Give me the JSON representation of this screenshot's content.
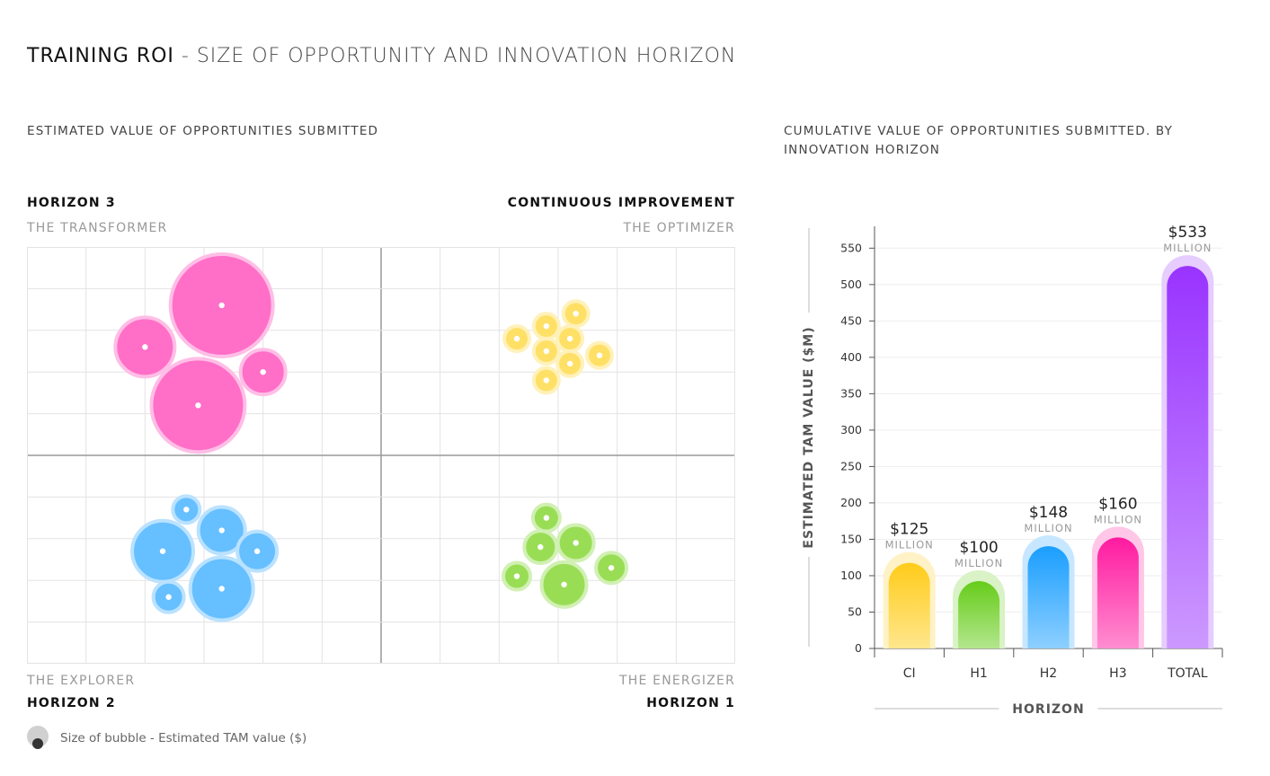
{
  "header": {
    "title_bold": "TRAINING ROI",
    "title_rest": " - SIZE OF OPPORTUNITY AND INNOVATION HORIZON"
  },
  "left_panel": {
    "subtitle": "ESTIMATED VALUE OF OPPORTUNITIES SUBMITTED",
    "quadrants": {
      "top_left": {
        "heading": "HORIZON 3",
        "label": "THE TRANSFORMER"
      },
      "top_right": {
        "heading": "CONTINUOUS IMPROVEMENT",
        "label": "THE OPTIMIZER"
      },
      "bottom_left": {
        "heading": "HORIZON 2",
        "label": "THE EXPLORER"
      },
      "bottom_right": {
        "heading": "HORIZON 1",
        "label": "THE ENERGIZER"
      }
    },
    "legend": "Size of bubble - Estimated TAM value ($)"
  },
  "right_panel": {
    "subtitle_line1": "CUMULATIVE VALUE OF OPPORTUNITIES SUBMITTED. BY",
    "subtitle_line2": "INNOVATION HORIZON"
  },
  "colors": {
    "pink": "#ff6ec7",
    "yellow": "#ffe066",
    "blue": "#66bfff",
    "green": "#99dd55",
    "purple": "#a64dff"
  },
  "chart_data": [
    {
      "type": "scatter",
      "title": "ESTIMATED VALUE OF OPPORTUNITIES SUBMITTED",
      "xlim": [
        0,
        12
      ],
      "ylim": [
        0,
        10
      ],
      "grid": true,
      "size_legend": "Size of bubble - Estimated TAM value ($)",
      "series": [
        {
          "name": "THE TRANSFORMER",
          "color": "#ff6ec7",
          "points": [
            {
              "x": 3.3,
              "y": 8.6,
              "r": 57
            },
            {
              "x": 2.0,
              "y": 7.6,
              "r": 33
            },
            {
              "x": 4.0,
              "y": 7.0,
              "r": 25
            },
            {
              "x": 2.9,
              "y": 6.2,
              "r": 52
            }
          ]
        },
        {
          "name": "THE OPTIMIZER",
          "color": "#ffe066",
          "points": [
            {
              "x": 9.3,
              "y": 8.4,
              "r": 14
            },
            {
              "x": 8.8,
              "y": 8.1,
              "r": 14
            },
            {
              "x": 8.3,
              "y": 7.8,
              "r": 14
            },
            {
              "x": 9.2,
              "y": 7.8,
              "r": 14
            },
            {
              "x": 8.8,
              "y": 7.5,
              "r": 14
            },
            {
              "x": 9.7,
              "y": 7.4,
              "r": 14
            },
            {
              "x": 9.2,
              "y": 7.2,
              "r": 14
            },
            {
              "x": 8.8,
              "y": 6.8,
              "r": 14
            }
          ]
        },
        {
          "name": "THE EXPLORER",
          "color": "#66bfff",
          "points": [
            {
              "x": 2.7,
              "y": 3.7,
              "r": 15
            },
            {
              "x": 3.3,
              "y": 3.2,
              "r": 26
            },
            {
              "x": 2.3,
              "y": 2.7,
              "r": 34
            },
            {
              "x": 3.9,
              "y": 2.7,
              "r": 22
            },
            {
              "x": 3.3,
              "y": 1.8,
              "r": 35
            },
            {
              "x": 2.4,
              "y": 1.6,
              "r": 17
            }
          ]
        },
        {
          "name": "THE ENERGIZER",
          "color": "#99dd55",
          "points": [
            {
              "x": 8.8,
              "y": 3.5,
              "r": 15
            },
            {
              "x": 9.3,
              "y": 2.9,
              "r": 20
            },
            {
              "x": 8.7,
              "y": 2.8,
              "r": 18
            },
            {
              "x": 9.9,
              "y": 2.3,
              "r": 17
            },
            {
              "x": 8.3,
              "y": 2.1,
              "r": 15
            },
            {
              "x": 9.1,
              "y": 1.9,
              "r": 25
            }
          ]
        }
      ]
    },
    {
      "type": "bar",
      "title": "CUMULATIVE VALUE OF OPPORTUNITIES SUBMITTED. BY INNOVATION HORIZON",
      "xlabel": "HORIZON",
      "ylabel": "ESTIMATED TAM VALUE ($M)",
      "ylim": [
        0,
        580
      ],
      "yticks": [
        0,
        50,
        100,
        150,
        200,
        250,
        300,
        350,
        400,
        450,
        500,
        550
      ],
      "categories": [
        "CI",
        "H1",
        "H2",
        "H3",
        "TOTAL"
      ],
      "values": [
        125,
        100,
        148,
        160,
        533
      ],
      "value_labels": [
        "$125",
        "$100",
        "$148",
        "$160",
        "$533"
      ],
      "unit_label": "MILLION",
      "colors": [
        "#ffcc1a",
        "#66cc1a",
        "#1a9eff",
        "#ff1aa0",
        "#9933ff"
      ],
      "grid": true
    }
  ]
}
